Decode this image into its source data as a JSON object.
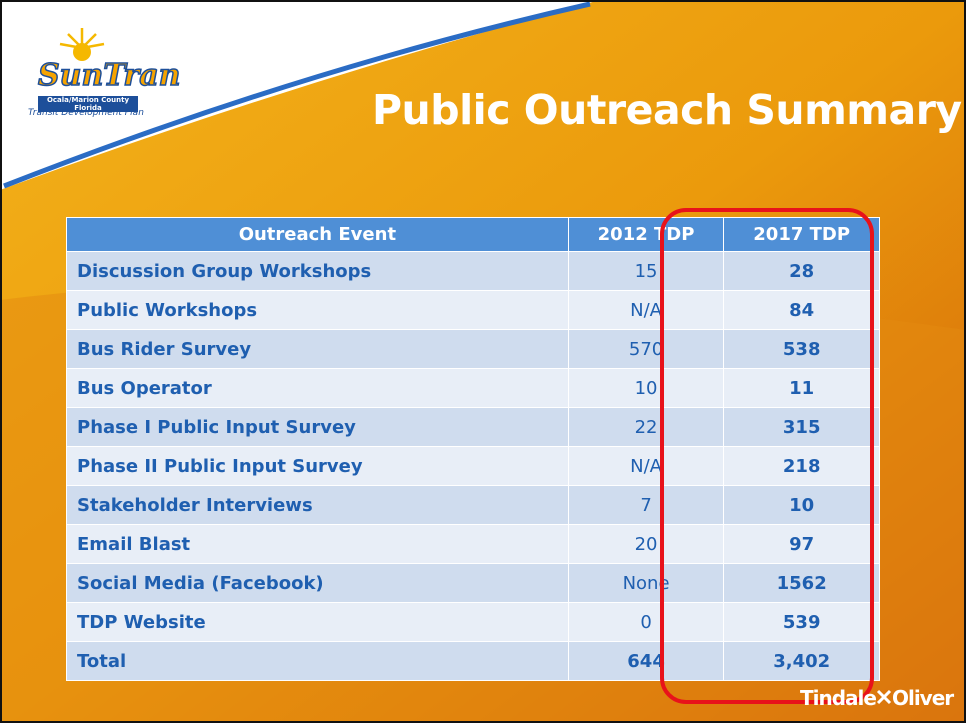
{
  "logo": {
    "name": "SunTran",
    "region": "Ocala/Marion County Florida",
    "subtitle": "Transit Development Plan"
  },
  "header": {
    "title": "Public Outreach Summary"
  },
  "table": {
    "columns": [
      "Outreach Event",
      "2012 TDP",
      "2017 TDP"
    ],
    "rows": [
      [
        "Discussion Group Workshops",
        "15",
        "28"
      ],
      [
        "Public Workshops",
        "N/A",
        "84"
      ],
      [
        "Bus Rider Survey",
        "570",
        "538"
      ],
      [
        "Bus Operator",
        "10",
        "11"
      ],
      [
        "Phase I Public Input Survey",
        "22",
        "315"
      ],
      [
        "Phase II Public Input Survey",
        "N/A",
        "218"
      ],
      [
        "Stakeholder Interviews",
        "7",
        "10"
      ],
      [
        "Email Blast",
        "20",
        "97"
      ],
      [
        "Social Media (Facebook)",
        "None",
        "1562"
      ],
      [
        "TDP Website",
        "0",
        "539"
      ],
      [
        "Total",
        "644",
        "3,402"
      ]
    ]
  },
  "footer": {
    "brand_left": "Tindale",
    "brand_right": "Oliver"
  }
}
